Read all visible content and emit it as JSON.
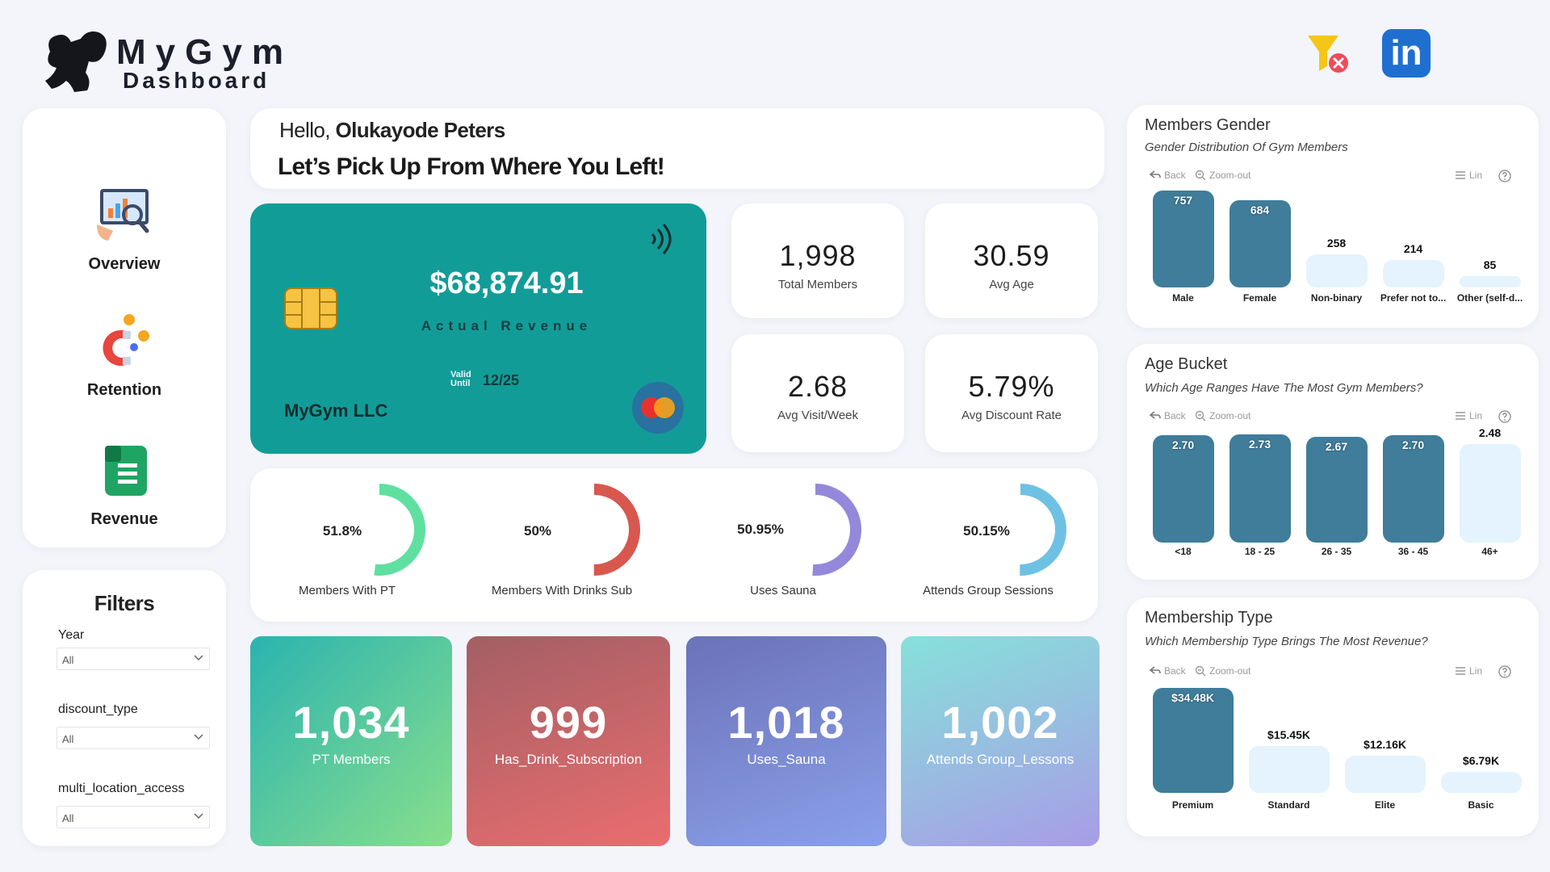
{
  "logo": {
    "title": "MyGym",
    "subtitle": "Dashboard"
  },
  "nav": {
    "items": [
      {
        "label": "Overview",
        "icon": "dashboard-analysis-icon"
      },
      {
        "label": "Retention",
        "icon": "magnet-icon"
      },
      {
        "label": "Revenue",
        "icon": "spreadsheet-icon"
      }
    ]
  },
  "filters": {
    "title": "Filters",
    "fields": [
      {
        "label": "Year",
        "value": "All"
      },
      {
        "label": "discount_type",
        "value": "All"
      },
      {
        "label": "multi_location_access",
        "value": "All"
      }
    ]
  },
  "greeting": {
    "hello": "Hello,",
    "name": "Olukayode Peters",
    "tagline": "Let’s Pick Up From Where You Left!"
  },
  "card": {
    "amount": "$68,874.91",
    "amount_label": "Actual Revenue",
    "valid_label_1": "Valid",
    "valid_label_2": "Until",
    "valid_date": "12/25",
    "company": "MyGym LLC",
    "colors": {
      "card": "#129c98"
    }
  },
  "kpis": [
    {
      "value": "1,998",
      "label": "Total Members"
    },
    {
      "value": "30.59",
      "label": "Avg Age"
    },
    {
      "value": "2.68",
      "label": "Avg Visit/Week"
    },
    {
      "value": "5.79%",
      "label": "Avg Discount Rate"
    }
  ],
  "donuts": [
    {
      "value": "51.8%",
      "fraction": 0.518,
      "label": "Members With PT",
      "color": "#5fe0a0"
    },
    {
      "value": "50%",
      "fraction": 0.5,
      "label": "Members With Drinks Sub",
      "color": "#d8574e"
    },
    {
      "value": "50.95%",
      "fraction": 0.5095,
      "label": "Uses Sauna",
      "color": "#9488db"
    },
    {
      "value": "50.15%",
      "fraction": 0.5015,
      "label": "Attends Group Sessions",
      "color": "#6fc1e4"
    }
  ],
  "tiles": [
    {
      "value": "1,034",
      "label": "PT Members"
    },
    {
      "value": "999",
      "label": "Has_Drink_Subscription"
    },
    {
      "value": "1,018",
      "label": "Uses_Sauna"
    },
    {
      "value": "1,002",
      "label": "Attends Group_Lessons"
    }
  ],
  "toolbar": {
    "back": "Back",
    "zoom": "Zoom-out",
    "lin": "Lin"
  },
  "chart_data": [
    {
      "type": "bar",
      "title": "Members Gender",
      "subtitle": "Gender Distribution Of Gym Members",
      "categories": [
        "Male",
        "Female",
        "Non-binary",
        "Prefer not to...",
        "Other (self-d..."
      ],
      "values": [
        757,
        684,
        258,
        214,
        85
      ],
      "labels": [
        "757",
        "684",
        "258",
        "214",
        "85"
      ],
      "ylim": [
        0,
        757
      ],
      "colors": {
        "primary": "#3f7d9b",
        "secondary": "#e4f3fd"
      }
    },
    {
      "type": "bar",
      "title": "Age Bucket",
      "subtitle": "Which Age Ranges Have The Most Gym Members?",
      "categories": [
        "<18",
        "18 - 25",
        "26 - 35",
        "36 - 45",
        "46+"
      ],
      "values": [
        2.7,
        2.73,
        2.67,
        2.7,
        2.48
      ],
      "labels": [
        "2.70",
        "2.73",
        "2.67",
        "2.70",
        "2.48"
      ],
      "ylim": [
        0,
        2.73
      ],
      "colors": {
        "primary": "#3f7d9b",
        "secondary": "#e4f3fd"
      }
    },
    {
      "type": "bar",
      "title": "Membership Type",
      "subtitle": "Which Membership Type Brings The Most Revenue?",
      "categories": [
        "Premium",
        "Standard",
        "Elite",
        "Basic"
      ],
      "values": [
        34480,
        15450,
        12160,
        6790
      ],
      "labels": [
        "$34.48K",
        "$15.45K",
        "$12.16K",
        "$6.79K"
      ],
      "ylim": [
        0,
        34480
      ],
      "colors": {
        "primary": "#3f7d9b",
        "secondary": "#e4f3fd"
      }
    }
  ]
}
